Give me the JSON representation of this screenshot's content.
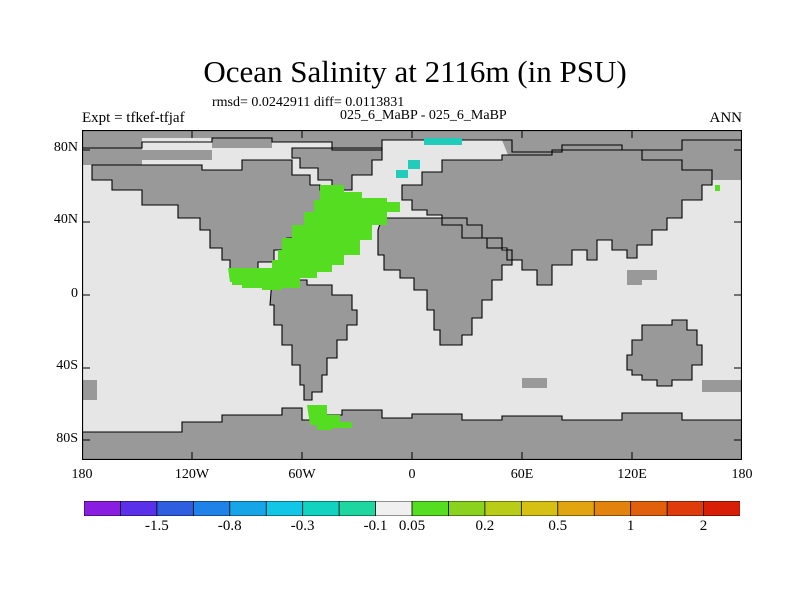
{
  "title": "Ocean Salinity at 2116m (in PSU)",
  "subtitle": "rmsd= 0.0242911 diff= 0.0113831",
  "experiments": "025_6_MaBP - 025_6_MaBP",
  "left_label": "Expt = tfkef-tfjaf",
  "right_label": "ANN",
  "map": {
    "y_ticks": [
      "80N",
      "40N",
      "0",
      "40S",
      "80S"
    ],
    "x_ticks": [
      "180",
      "120W",
      "60W",
      "0",
      "60E",
      "120E",
      "180"
    ],
    "colors": {
      "land": "#999999",
      "ocean_neutral": "#e6e6e6",
      "positive_green": "#55dd22",
      "negative_teal": "#22ccbb",
      "coast": "#000000"
    }
  },
  "colorbar": {
    "colors": [
      "#8a1ee0",
      "#5a30e8",
      "#2f5ee0",
      "#1e82e8",
      "#16a6e8",
      "#12c6e6",
      "#12d2c0",
      "#1ed6a0",
      "#f0f0f0",
      "#55dd22",
      "#8ad21e",
      "#b8cc18",
      "#d6c014",
      "#e0a510",
      "#e2830e",
      "#e0600c",
      "#de3c0a",
      "#d81e06"
    ],
    "labels": [
      "-1.5",
      "-0.8",
      "-0.3",
      "-0.1",
      "0.05",
      "0.2",
      "0.5",
      "1",
      "2"
    ]
  }
}
